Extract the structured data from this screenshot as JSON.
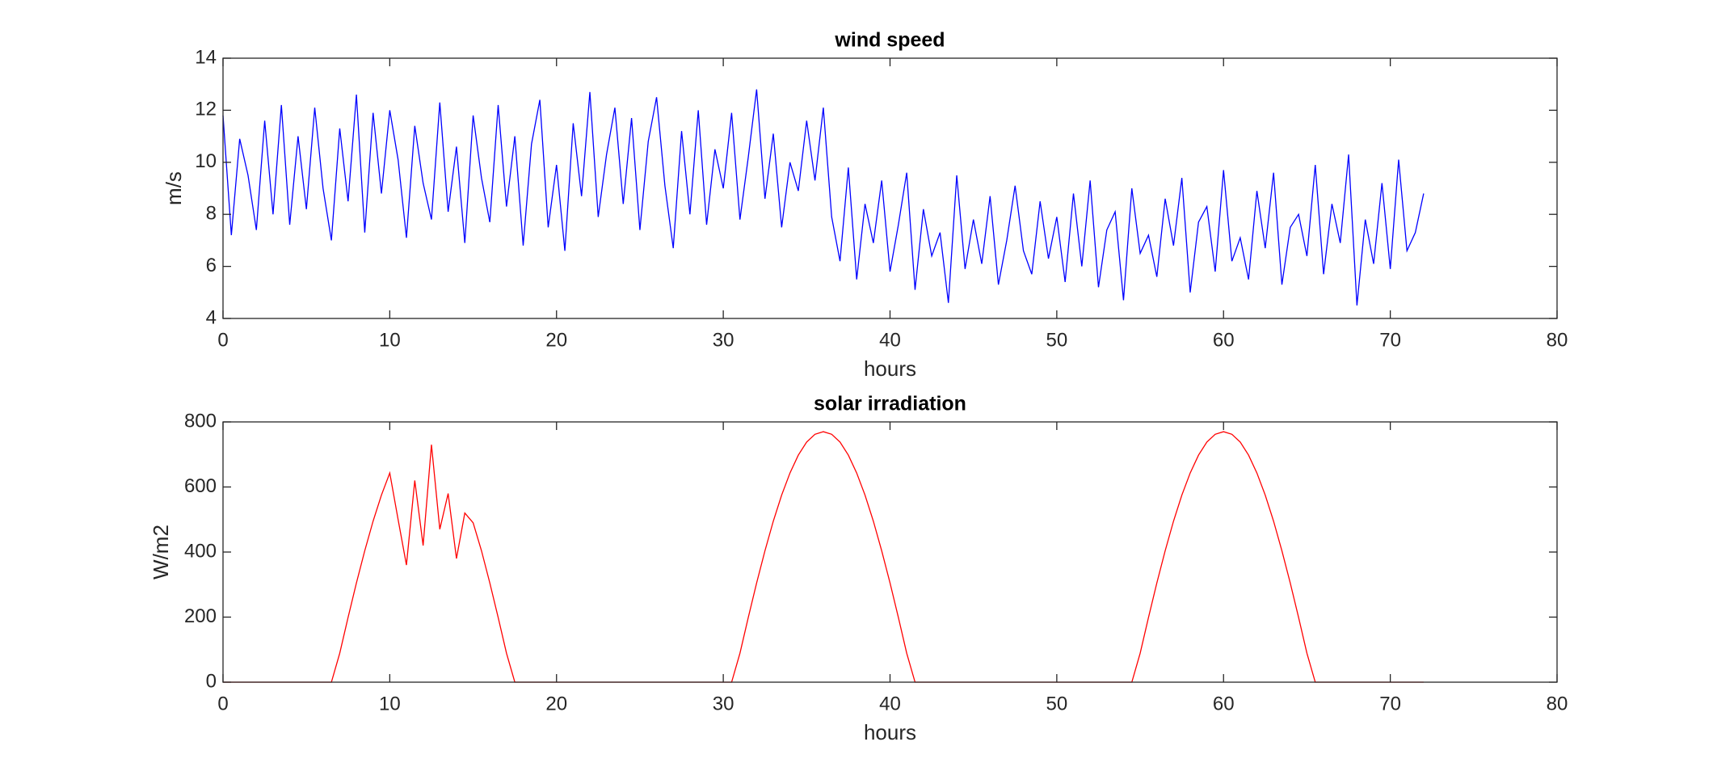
{
  "chart_data": [
    {
      "type": "line",
      "title": "wind speed",
      "xlabel": "hours",
      "ylabel": "m/s",
      "xlim": [
        0,
        80
      ],
      "xticks": [
        0,
        10,
        20,
        30,
        40,
        50,
        60,
        70,
        80
      ],
      "ylim": [
        4,
        14
      ],
      "yticks": [
        4,
        6,
        8,
        10,
        12,
        14
      ],
      "x": [
        0,
        0.5,
        1,
        1.5,
        2,
        2.5,
        3,
        3.5,
        4,
        4.5,
        5,
        5.5,
        6,
        6.5,
        7,
        7.5,
        8,
        8.5,
        9,
        9.5,
        10,
        10.5,
        11,
        11.5,
        12,
        12.5,
        13,
        13.5,
        14,
        14.5,
        15,
        15.5,
        16,
        16.5,
        17,
        17.5,
        18,
        18.5,
        19,
        19.5,
        20,
        20.5,
        21,
        21.5,
        22,
        22.5,
        23,
        23.5,
        24,
        24.5,
        25,
        25.5,
        26,
        26.5,
        27,
        27.5,
        28,
        28.5,
        29,
        29.5,
        30,
        30.5,
        31,
        31.5,
        32,
        32.5,
        33,
        33.5,
        34,
        34.5,
        35,
        35.5,
        36,
        36.5,
        37,
        37.5,
        38,
        38.5,
        39,
        39.5,
        40,
        40.5,
        41,
        41.5,
        42,
        42.5,
        43,
        43.5,
        44,
        44.5,
        45,
        45.5,
        46,
        46.5,
        47,
        47.5,
        48,
        48.5,
        49,
        49.5,
        50,
        50.5,
        51,
        51.5,
        52,
        52.5,
        53,
        53.5,
        54,
        54.5,
        55,
        55.5,
        56,
        56.5,
        57,
        57.5,
        58,
        58.5,
        59,
        59.5,
        60,
        60.5,
        61,
        61.5,
        62,
        62.5,
        63,
        63.5,
        64,
        64.5,
        65,
        65.5,
        66,
        66.5,
        67,
        67.5,
        68,
        68.5,
        69,
        69.5,
        70,
        70.5,
        71,
        71.5,
        72
      ],
      "series": [
        {
          "color": "#0000ff",
          "values": [
            11.8,
            7.2,
            10.9,
            9.5,
            7.4,
            11.6,
            8.0,
            12.2,
            7.6,
            11.0,
            8.2,
            12.1,
            9.0,
            7.0,
            11.3,
            8.5,
            12.6,
            7.3,
            11.9,
            8.8,
            12.0,
            10.1,
            7.1,
            11.4,
            9.2,
            7.8,
            12.3,
            8.1,
            10.6,
            6.9,
            11.8,
            9.4,
            7.7,
            12.2,
            8.3,
            11.0,
            6.8,
            10.7,
            12.4,
            7.5,
            9.9,
            6.6,
            11.5,
            8.7,
            12.7,
            7.9,
            10.3,
            12.1,
            8.4,
            11.7,
            7.4,
            10.8,
            12.5,
            9.1,
            6.7,
            11.2,
            8.0,
            12.0,
            7.6,
            10.5,
            9.0,
            11.9,
            7.8,
            10.2,
            12.8,
            8.6,
            11.1,
            7.5,
            10.0,
            8.9,
            11.6,
            9.3,
            12.1,
            7.9,
            6.2,
            9.8,
            5.5,
            8.4,
            6.9,
            9.3,
            5.8,
            7.6,
            9.6,
            5.1,
            8.2,
            6.4,
            7.3,
            4.6,
            9.5,
            5.9,
            7.8,
            6.1,
            8.7,
            5.3,
            7.0,
            9.1,
            6.6,
            5.7,
            8.5,
            6.3,
            7.9,
            5.4,
            8.8,
            6.0,
            9.3,
            5.2,
            7.4,
            8.1,
            4.7,
            9.0,
            6.5,
            7.2,
            5.6,
            8.6,
            6.8,
            9.4,
            5.0,
            7.7,
            8.3,
            5.8,
            9.7,
            6.2,
            7.1,
            5.5,
            8.9,
            6.7,
            9.6,
            5.3,
            7.5,
            8.0,
            6.4,
            9.9,
            5.7,
            8.4,
            6.9,
            10.3,
            4.5,
            7.8,
            6.1,
            9.2,
            5.9,
            10.1,
            6.6,
            7.3,
            8.8
          ]
        }
      ]
    },
    {
      "type": "line",
      "title": "solar irradiation",
      "xlabel": "hours",
      "ylabel": "W/m2",
      "xlim": [
        0,
        80
      ],
      "xticks": [
        0,
        10,
        20,
        30,
        40,
        50,
        60,
        70,
        80
      ],
      "ylim": [
        0,
        800
      ],
      "yticks": [
        0,
        200,
        400,
        600,
        800
      ],
      "x": [
        0,
        0.5,
        1,
        1.5,
        2,
        2.5,
        3,
        3.5,
        4,
        4.5,
        5,
        5.5,
        6,
        6.5,
        7,
        7.5,
        8,
        8.5,
        9,
        9.5,
        10,
        10.5,
        11,
        11.5,
        12,
        12.5,
        13,
        13.5,
        14,
        14.5,
        15,
        15.5,
        16,
        16.5,
        17,
        17.5,
        18,
        18.5,
        19,
        19.5,
        20,
        20.5,
        21,
        21.5,
        22,
        22.5,
        23,
        23.5,
        24,
        24.5,
        25,
        25.5,
        26,
        26.5,
        27,
        27.5,
        28,
        28.5,
        29,
        29.5,
        30,
        30.5,
        31,
        31.5,
        32,
        32.5,
        33,
        33.5,
        34,
        34.5,
        35,
        35.5,
        36,
        36.5,
        37,
        37.5,
        38,
        38.5,
        39,
        39.5,
        40,
        40.5,
        41,
        41.5,
        42,
        42.5,
        43,
        43.5,
        44,
        44.5,
        45,
        45.5,
        46,
        46.5,
        47,
        47.5,
        48,
        48.5,
        49,
        49.5,
        50,
        50.5,
        51,
        51.5,
        52,
        52.5,
        53,
        53.5,
        54,
        54.5,
        55,
        55.5,
        56,
        56.5,
        57,
        57.5,
        58,
        58.5,
        59,
        59.5,
        60,
        60.5,
        61,
        61.5,
        62,
        62.5,
        63,
        63.5,
        64,
        64.5,
        65,
        65.5,
        66,
        66.5,
        67,
        67.5,
        68,
        68.5,
        69,
        69.5,
        70,
        70.5,
        71,
        71.5,
        72
      ],
      "series": [
        {
          "color": "#ff0000",
          "values": [
            0,
            0,
            0,
            0,
            0,
            0,
            0,
            0,
            0,
            0,
            0,
            0,
            0,
            0,
            89,
            199,
            305,
            404,
            495,
            575,
            643,
            500,
            360,
            620,
            420,
            730,
            470,
            580,
            380,
            520,
            490,
            404,
            305,
            199,
            89,
            0,
            0,
            0,
            0,
            0,
            0,
            0,
            0,
            0,
            0,
            0,
            0,
            0,
            0,
            0,
            0,
            0,
            0,
            0,
            0,
            0,
            0,
            0,
            0,
            0,
            0,
            0,
            89,
            199,
            305,
            404,
            495,
            575,
            643,
            698,
            738,
            762,
            770,
            762,
            738,
            698,
            643,
            575,
            495,
            404,
            305,
            199,
            89,
            0,
            0,
            0,
            0,
            0,
            0,
            0,
            0,
            0,
            0,
            0,
            0,
            0,
            0,
            0,
            0,
            0,
            0,
            0,
            0,
            0,
            0,
            0,
            0,
            0,
            0,
            0,
            89,
            199,
            305,
            404,
            495,
            575,
            643,
            698,
            738,
            762,
            770,
            762,
            738,
            698,
            643,
            575,
            495,
            404,
            305,
            199,
            89,
            0,
            0,
            0,
            0,
            0,
            0,
            0,
            0,
            0,
            0,
            0,
            0,
            0,
            0
          ]
        }
      ]
    }
  ]
}
